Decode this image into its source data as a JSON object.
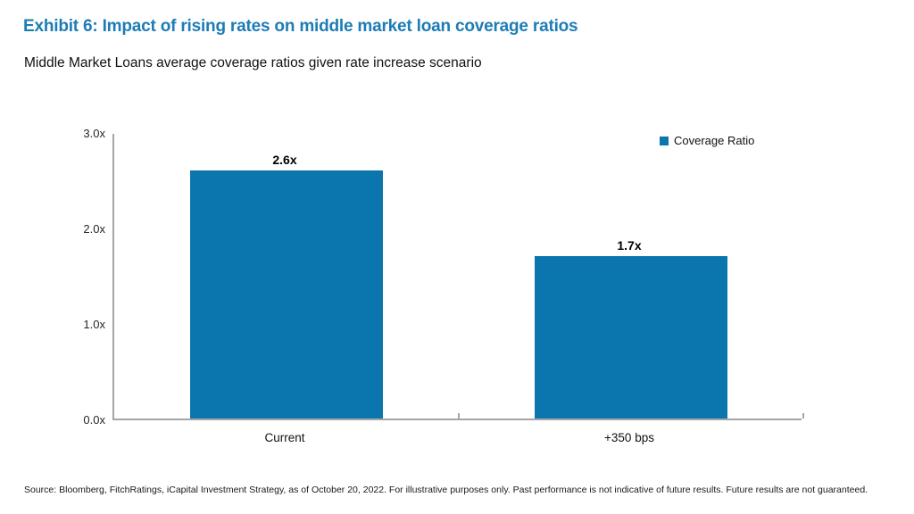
{
  "page": {
    "title": "Exhibit 6: Impact of rising rates on middle market loan coverage ratios",
    "subtitle": "Middle Market Loans average coverage ratios given rate increase scenario",
    "source": "Source: Bloomberg, FitchRatings, iCapital Investment Strategy, as of October 20, 2022. For illustrative purposes only. Past performance is not indicative of future results. Future results are not guaranteed."
  },
  "colors": {
    "title_blue": "#1d7cb5",
    "bar_blue": "#0a76ad",
    "axis_gray": "#a6a6a6",
    "label_black": "#000000"
  },
  "chart_data": {
    "type": "bar",
    "title": "Exhibit 6: Impact of rising rates on middle market loan coverage ratios",
    "subtitle": "Middle Market Loans average coverage ratios given rate increase scenario",
    "categories": [
      "Current",
      "+350 bps"
    ],
    "series": [
      {
        "name": "Coverage Ratio",
        "values": [
          2.6,
          1.7
        ]
      }
    ],
    "data_labels": [
      "2.6x",
      "1.7x"
    ],
    "ylabel": "",
    "xlabel": "",
    "ylim": [
      0,
      3
    ],
    "ytick_values": [
      0,
      1,
      2,
      3
    ],
    "ytick_labels": [
      "0.0x",
      "1.0x",
      "2.0x",
      "3.0x"
    ],
    "grid": false,
    "legend_position": "top-right",
    "legend_entries": [
      "Coverage Ratio"
    ],
    "bar_color": "#0a76ad"
  }
}
